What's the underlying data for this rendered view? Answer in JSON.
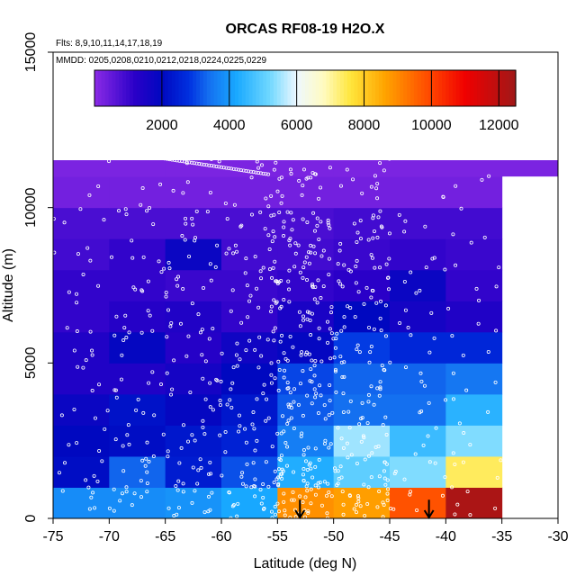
{
  "chart_data": {
    "type": "heatmap",
    "title": "ORCAS RF08-19 H2O.X",
    "flights_label": "Flts: 8,9,10,11,14,17,18,19",
    "dates_label": "MMDD: 0205,0208,0210,0212,0218,0224,0225,0229",
    "xlabel": "Latitude (deg N)",
    "ylabel": "Altitude (m)",
    "xlim": [
      -75,
      -30
    ],
    "ylim": [
      0,
      15000
    ],
    "xticks": [
      "-75",
      "-70",
      "-65",
      "-60",
      "-55",
      "-50",
      "-45",
      "-40",
      "-35",
      "-30"
    ],
    "xtick_values": [
      -75,
      -70,
      -65,
      -60,
      -55,
      -50,
      -45,
      -40,
      -35,
      -30
    ],
    "yticks": [
      "0",
      "5000",
      "10000",
      "15000"
    ],
    "ytick_values": [
      0,
      5000,
      10000,
      15000
    ],
    "colorbar": {
      "min": 0,
      "max": 12500,
      "ticks": [
        "2000",
        "4000",
        "6000",
        "8000",
        "10000",
        "12000"
      ],
      "tick_values": [
        2000,
        4000,
        6000,
        8000,
        10000,
        12000
      ],
      "stops": [
        {
          "v": 0,
          "c": "#8b2be6"
        },
        {
          "v": 1200,
          "c": "#2a00c8"
        },
        {
          "v": 2000,
          "c": "#0008c0"
        },
        {
          "v": 2800,
          "c": "#0030e0"
        },
        {
          "v": 3400,
          "c": "#1470f0"
        },
        {
          "v": 4200,
          "c": "#18a8ff"
        },
        {
          "v": 5200,
          "c": "#70d8ff"
        },
        {
          "v": 6000,
          "c": "#eef8ff"
        },
        {
          "v": 6800,
          "c": "#fffbc0"
        },
        {
          "v": 7600,
          "c": "#ffe63c"
        },
        {
          "v": 8600,
          "c": "#ffa500"
        },
        {
          "v": 10000,
          "c": "#ff4400"
        },
        {
          "v": 11000,
          "c": "#f00000"
        },
        {
          "v": 12500,
          "c": "#a01818"
        }
      ]
    },
    "lat_bins": [
      -75,
      -70,
      -65,
      -60,
      -55,
      -50,
      -45,
      -40,
      -35
    ],
    "alt_bins": [
      0,
      1000,
      2000,
      3000,
      4000,
      5000,
      6000,
      7000,
      8000,
      9000,
      10000,
      11000,
      12000
    ],
    "grid_values": [
      [
        3800,
        3800,
        3900,
        4200,
        8900,
        8700,
        9800,
        12300
      ],
      [
        2100,
        3300,
        2400,
        3100,
        4300,
        5000,
        5300,
        7400
      ],
      [
        2000,
        2100,
        2300,
        2500,
        3600,
        5500,
        4600,
        5300
      ],
      [
        1800,
        2200,
        1900,
        2300,
        3200,
        3400,
        3400,
        4400
      ],
      [
        1400,
        1400,
        1600,
        2000,
        3000,
        3300,
        3300,
        3500
      ],
      [
        1400,
        1900,
        1300,
        1700,
        1900,
        2900,
        2600,
        2600
      ],
      [
        1100,
        1300,
        1400,
        1100,
        1500,
        2000,
        1600,
        1400
      ],
      [
        1100,
        1100,
        1000,
        1000,
        1100,
        1200,
        1800,
        1100
      ],
      [
        900,
        1100,
        1800,
        900,
        900,
        1000,
        1100,
        1000
      ],
      [
        800,
        800,
        800,
        800,
        800,
        900,
        900,
        900
      ],
      [
        300,
        300,
        300,
        300,
        300,
        300,
        300,
        300
      ],
      [
        200,
        200,
        200,
        200,
        200,
        200,
        200,
        200
      ]
    ],
    "top_band": {
      "lat_range": [
        -75,
        -30
      ],
      "alt_range": [
        11000,
        12000
      ],
      "value": 200
    },
    "arrows": [
      {
        "lat": -53,
        "alt_top": 600,
        "alt_bottom": 0
      },
      {
        "lat": -41.5,
        "alt_top": 600,
        "alt_bottom": 0
      }
    ],
    "grid": false
  },
  "colors": {
    "points": "#ffffff",
    "arrows": "#000000"
  }
}
